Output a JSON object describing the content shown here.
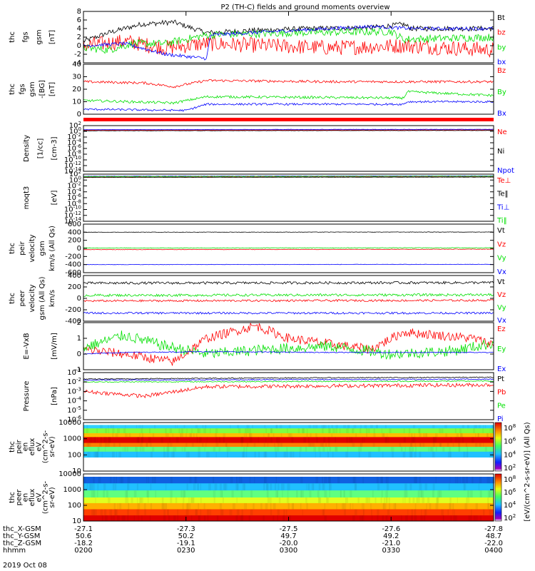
{
  "title": "P2 (TH-C) fields and ground moments overview",
  "colors": {
    "black": "#000000",
    "red": "#ff0000",
    "green": "#00e000",
    "blue": "#0000ff"
  },
  "chart_data": [
    {
      "type": "line",
      "ylabel": [
        "thc",
        "fgs",
        "gsm",
        "[nT]"
      ],
      "yticks": [
        "8",
        "6",
        "4",
        "2",
        "0",
        "-2",
        "-4"
      ],
      "ylim": [
        -4,
        8
      ],
      "legend": [
        "Bt",
        "bz",
        "by",
        "bx"
      ],
      "series": [
        {
          "name": "Bt",
          "color": "black",
          "knots": [
            [
              0,
              1
            ],
            [
              0.06,
              3
            ],
            [
              0.14,
              5
            ],
            [
              0.22,
              5.5
            ],
            [
              0.3,
              3
            ],
            [
              0.4,
              3.5
            ],
            [
              0.55,
              4
            ],
            [
              0.7,
              4.2
            ],
            [
              0.78,
              5
            ],
            [
              0.8,
              4
            ],
            [
              1,
              4
            ]
          ],
          "noise": 0.6
        },
        {
          "name": "bz",
          "color": "red",
          "knots": [
            [
              0,
              0
            ],
            [
              0.1,
              1
            ],
            [
              0.2,
              -0.5
            ],
            [
              0.3,
              0.5
            ],
            [
              0.45,
              0
            ],
            [
              0.6,
              -0.5
            ],
            [
              0.78,
              0
            ],
            [
              1,
              -1
            ]
          ],
          "noise": 1.8
        },
        {
          "name": "by",
          "color": "green",
          "knots": [
            [
              0,
              -0.5
            ],
            [
              0.06,
              -1
            ],
            [
              0.12,
              0.5
            ],
            [
              0.2,
              0.5
            ],
            [
              0.3,
              2.5
            ],
            [
              0.5,
              3
            ],
            [
              0.75,
              3.3
            ],
            [
              0.78,
              1.5
            ],
            [
              1,
              2
            ]
          ],
          "noise": 0.9
        },
        {
          "name": "bx",
          "color": "blue",
          "knots": [
            [
              0,
              0
            ],
            [
              0.1,
              0.5
            ],
            [
              0.2,
              -2
            ],
            [
              0.3,
              -3
            ],
            [
              0.31,
              2.5
            ],
            [
              0.5,
              3.5
            ],
            [
              0.7,
              4.5
            ],
            [
              0.8,
              4
            ],
            [
              1,
              4
            ]
          ],
          "noise": 0.4
        }
      ]
    },
    {
      "type": "line",
      "ylabel": [
        "thc",
        "fgs",
        "gsm",
        "-[BG]",
        "[nT]"
      ],
      "yticks": [
        "40",
        "30",
        "20",
        "10",
        "0"
      ],
      "ylim": [
        0,
        40
      ],
      "legend": [
        "Bz",
        "By",
        "Bx"
      ],
      "series": [
        {
          "name": "Bz",
          "color": "red",
          "knots": [
            [
              0,
              26
            ],
            [
              0.15,
              25
            ],
            [
              0.22,
              22
            ],
            [
              0.3,
              27
            ],
            [
              0.6,
              26
            ],
            [
              1,
              26
            ]
          ],
          "noise": 1
        },
        {
          "name": "By",
          "color": "green",
          "knots": [
            [
              0,
              11
            ],
            [
              0.22,
              9
            ],
            [
              0.3,
              14
            ],
            [
              0.78,
              13
            ],
            [
              0.79,
              18
            ],
            [
              1,
              15
            ]
          ],
          "noise": 1
        },
        {
          "name": "Bx",
          "color": "blue",
          "knots": [
            [
              0,
              4
            ],
            [
              0.25,
              3
            ],
            [
              0.3,
              8
            ],
            [
              0.78,
              8
            ],
            [
              0.79,
              10
            ],
            [
              1,
              10
            ]
          ],
          "noise": 0.8
        }
      ]
    },
    {
      "type": "line",
      "log": true,
      "ylabel": [
        "Density",
        "[1/cc]",
        "[cm-3]"
      ],
      "yticks": [
        "10^2",
        "10^0",
        "10^-2",
        "10^-4",
        "10^-6",
        "10^-8",
        "10^-10",
        "10^-12",
        "10^-14"
      ],
      "ylim": [
        -14,
        2
      ],
      "legend": [
        "Ne",
        "Ni",
        "Npot"
      ],
      "series": [
        {
          "name": "Ne",
          "color": "red",
          "knots": [
            [
              0,
              0.4
            ],
            [
              1,
              0.5
            ]
          ],
          "noise": 0.05
        },
        {
          "name": "Ni",
          "color": "black",
          "knots": [
            [
              0,
              0.2
            ],
            [
              1,
              0.3
            ]
          ],
          "noise": 0.05
        },
        {
          "name": "Npot",
          "color": "blue",
          "knots": [
            [
              0,
              0.6
            ],
            [
              1,
              0.7
            ]
          ],
          "noise": 0.05
        }
      ]
    },
    {
      "type": "line",
      "log": true,
      "ylabel": [
        "moqt3",
        "[eV]"
      ],
      "yticks": [
        "10^2",
        "10^0",
        "10^-2",
        "10^-4",
        "10^-6",
        "10^-8",
        "10^-10",
        "10^-12",
        "10^-14"
      ],
      "ylim": [
        -14,
        2
      ],
      "legend": [
        "Te⊥",
        "Te‖",
        "Ti⊥",
        "Ti‖"
      ],
      "series": [
        {
          "name": "Te⊥",
          "color": "red",
          "knots": [
            [
              0,
              1.0
            ],
            [
              1,
              1.1
            ]
          ],
          "noise": 0.05
        },
        {
          "name": "Te‖",
          "color": "black",
          "knots": [
            [
              0,
              0.9
            ],
            [
              1,
              1.0
            ]
          ],
          "noise": 0.05
        },
        {
          "name": "Ti⊥",
          "color": "blue",
          "knots": [
            [
              0,
              1.3
            ],
            [
              1,
              1.4
            ]
          ],
          "noise": 0.05
        },
        {
          "name": "Ti‖",
          "color": "green",
          "knots": [
            [
              0,
              1.2
            ],
            [
              1,
              1.3
            ]
          ],
          "noise": 0.05
        }
      ]
    },
    {
      "type": "line",
      "ylabel": [
        "thc",
        "peir",
        "velocity",
        "gsm",
        "km/s (All Qs)"
      ],
      "yticks": [
        "600",
        "400",
        "200",
        "0",
        "-200",
        "-400",
        "-600"
      ],
      "ylim": [
        -600,
        600
      ],
      "legend": [
        "Vt",
        "Vz",
        "Vy",
        "Vx"
      ],
      "series": [
        {
          "name": "Vt",
          "color": "black",
          "knots": [
            [
              0,
              400
            ],
            [
              1,
              405
            ]
          ],
          "noise": 5
        },
        {
          "name": "Vz",
          "color": "red",
          "knots": [
            [
              0,
              -30
            ],
            [
              1,
              -20
            ]
          ],
          "noise": 6
        },
        {
          "name": "Vy",
          "color": "green",
          "knots": [
            [
              0,
              10
            ],
            [
              1,
              15
            ]
          ],
          "noise": 6
        },
        {
          "name": "Vx",
          "color": "blue",
          "knots": [
            [
              0,
              -400
            ],
            [
              1,
              -395
            ]
          ],
          "noise": 5
        }
      ]
    },
    {
      "type": "line",
      "ylabel": [
        "thc",
        "peer",
        "velocity",
        "gsm (All Qs)",
        "km/s"
      ],
      "yticks": [
        "400",
        "200",
        "0",
        "-200",
        "-400"
      ],
      "ylim": [
        -450,
        450
      ],
      "legend": [
        "Vt",
        "Vz",
        "Vy",
        "Vx"
      ],
      "series": [
        {
          "name": "Vt",
          "color": "black",
          "knots": [
            [
              0,
              300
            ],
            [
              1,
              310
            ]
          ],
          "noise": 25
        },
        {
          "name": "Vz",
          "color": "red",
          "knots": [
            [
              0,
              -50
            ],
            [
              1,
              -40
            ]
          ],
          "noise": 20
        },
        {
          "name": "Vy",
          "color": "green",
          "knots": [
            [
              0,
              60
            ],
            [
              1,
              70
            ]
          ],
          "noise": 25
        },
        {
          "name": "Vx",
          "color": "blue",
          "knots": [
            [
              0,
              -290
            ],
            [
              1,
              -290
            ]
          ],
          "noise": 20
        }
      ]
    },
    {
      "type": "line",
      "ylabel": [
        "E=-VxB",
        "[mV/m]"
      ],
      "yticks": [
        "2",
        "1",
        "0",
        "-1"
      ],
      "ylim": [
        -1,
        2
      ],
      "legend": [
        "Ez",
        "Ey",
        "Ex"
      ],
      "series": [
        {
          "name": "Ez",
          "color": "red",
          "knots": [
            [
              0,
              0.3
            ],
            [
              0.1,
              0
            ],
            [
              0.22,
              -0.5
            ],
            [
              0.3,
              1
            ],
            [
              0.42,
              1.8
            ],
            [
              0.5,
              1
            ],
            [
              0.7,
              0.3
            ],
            [
              0.78,
              1.4
            ],
            [
              0.95,
              1
            ],
            [
              1,
              0.6
            ]
          ],
          "noise": 0.3
        },
        {
          "name": "Ey",
          "color": "green",
          "knots": [
            [
              0,
              0.4
            ],
            [
              0.1,
              1.2
            ],
            [
              0.2,
              0.5
            ],
            [
              0.3,
              0
            ],
            [
              0.45,
              0.3
            ],
            [
              0.6,
              0.5
            ],
            [
              0.75,
              0
            ],
            [
              0.9,
              0.2
            ],
            [
              1,
              0.7
            ]
          ],
          "noise": 0.35
        },
        {
          "name": "Ex",
          "color": "blue",
          "knots": [
            [
              0,
              0
            ],
            [
              0.1,
              0.1
            ],
            [
              0.3,
              0.15
            ],
            [
              0.6,
              0.1
            ],
            [
              1,
              0.1
            ]
          ],
          "noise": 0.03
        }
      ]
    },
    {
      "type": "line",
      "log": true,
      "ylabel": [
        "Pressure",
        "[nPa]"
      ],
      "yticks": [
        "10^-1",
        "10^-2",
        "10^-3",
        "10^-4",
        "10^-5",
        "10^-6"
      ],
      "ylim": [
        -6,
        -1
      ],
      "legend": [
        "Pt",
        "Pb",
        "Pe",
        "Pi"
      ],
      "series": [
        {
          "name": "Pt",
          "color": "black",
          "knots": [
            [
              0,
              -1.7
            ],
            [
              0.3,
              -1.6
            ],
            [
              1,
              -1.5
            ]
          ],
          "noise": 0.05
        },
        {
          "name": "Pb",
          "color": "red",
          "knots": [
            [
              0,
              -3
            ],
            [
              0.15,
              -3.5
            ],
            [
              0.3,
              -2.5
            ],
            [
              1,
              -2.3
            ]
          ],
          "noise": 0.2
        },
        {
          "name": "Pe",
          "color": "green",
          "knots": [
            [
              0,
              -2
            ],
            [
              1,
              -1.9
            ]
          ],
          "noise": 0.05
        },
        {
          "name": "Pi",
          "color": "blue",
          "knots": [
            [
              0,
              -1.8
            ],
            [
              1,
              -1.7
            ]
          ],
          "noise": 0.05
        }
      ]
    },
    {
      "type": "heatmap",
      "ylabel": [
        "thc",
        "peir",
        "en",
        "eflux",
        "eV",
        "(cm^2-s-",
        "sr-eV)"
      ],
      "yticks": [
        "10000",
        "1000",
        "100",
        "10"
      ],
      "bands": [
        [
          0.0,
          0.05,
          "#ffffff"
        ],
        [
          0.05,
          0.12,
          "#30d0ff"
        ],
        [
          0.12,
          0.22,
          "#80ff40"
        ],
        [
          0.22,
          0.3,
          "#ffc000"
        ],
        [
          0.3,
          0.42,
          "#e00000"
        ],
        [
          0.42,
          0.5,
          "#ff8000"
        ],
        [
          0.5,
          0.6,
          "#60ff80"
        ],
        [
          0.6,
          0.72,
          "#20c0ff"
        ],
        [
          0.72,
          1.0,
          "#ffffff"
        ]
      ]
    },
    {
      "type": "heatmap",
      "ylabel": [
        "thc",
        "peer",
        "en",
        "eflux",
        "eV",
        "(cm^2-s-",
        "sr-eV)"
      ],
      "yticks": [
        "10000",
        "1000",
        "100",
        "10"
      ],
      "bands": [
        [
          0.0,
          0.06,
          "#ffffff"
        ],
        [
          0.06,
          0.2,
          "#1060e0"
        ],
        [
          0.2,
          0.35,
          "#20c0ff"
        ],
        [
          0.35,
          0.5,
          "#60ff80"
        ],
        [
          0.5,
          0.62,
          "#e0ff20"
        ],
        [
          0.62,
          0.75,
          "#ffb000"
        ],
        [
          0.75,
          0.88,
          "#ff4000"
        ],
        [
          0.88,
          1.0,
          "#e00000"
        ]
      ]
    }
  ],
  "colorbar": {
    "ticks": [
      "10^8",
      "10^6",
      "10^4",
      "10^2"
    ],
    "label": "[eV/(cm^2-s-sr-eV)] (All Qs)"
  },
  "xaxis": {
    "rows": [
      {
        "label": "thc_X-GSM",
        "values": [
          "-27.1",
          "-27.3",
          "-27.5",
          "-27.6",
          "-27.8"
        ]
      },
      {
        "label": "thc_Y-GSM",
        "values": [
          "50.6",
          "50.2",
          "49.7",
          "49.2",
          "48.7"
        ]
      },
      {
        "label": "thc_Z-GSM",
        "values": [
          "-18.2",
          "-19.1",
          "-20.0",
          "-21.0",
          "-22.0"
        ]
      },
      {
        "label": "hhmm",
        "values": [
          "0200",
          "0230",
          "0300",
          "0330",
          "0400"
        ]
      }
    ],
    "date": "2019 Oct 08"
  }
}
